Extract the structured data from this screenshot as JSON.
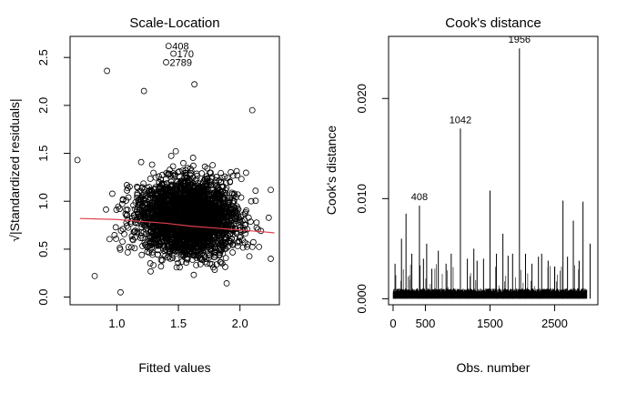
{
  "chart_data": [
    {
      "type": "scatter",
      "title": "Scale-Location",
      "xlabel": "Fitted values",
      "ylabel": "√|Standardized residuals|",
      "xlim": [
        0.62,
        2.32
      ],
      "ylim": [
        -0.08,
        2.72
      ],
      "xticks": [
        "1.0",
        "1.5",
        "2.0"
      ],
      "yticks": [
        "0.0",
        "0.5",
        "1.0",
        "1.5",
        "2.0",
        "2.5"
      ],
      "n_points": 3000,
      "marker": "open-circle",
      "smoother": {
        "color": "#e04050",
        "x": [
          0.7,
          1.0,
          1.2,
          1.4,
          1.6,
          1.8,
          2.0,
          2.2,
          2.28
        ],
        "y": [
          0.82,
          0.81,
          0.79,
          0.77,
          0.74,
          0.72,
          0.7,
          0.68,
          0.67
        ]
      },
      "outliers": [
        {
          "label": "408",
          "x": 1.42,
          "y": 2.62
        },
        {
          "label": "170",
          "x": 1.46,
          "y": 2.54
        },
        {
          "label": "2789",
          "x": 1.4,
          "y": 2.45
        }
      ],
      "notable_points": [
        {
          "x": 0.68,
          "y": 1.43
        },
        {
          "x": 0.92,
          "y": 2.36
        },
        {
          "x": 1.22,
          "y": 2.15
        },
        {
          "x": 1.63,
          "y": 2.22
        },
        {
          "x": 2.1,
          "y": 1.95
        },
        {
          "x": 0.82,
          "y": 0.22
        },
        {
          "x": 1.03,
          "y": 0.05
        },
        {
          "x": 2.25,
          "y": 0.4
        }
      ]
    },
    {
      "type": "bar",
      "title": "Cook's distance",
      "xlabel": "Obs. number",
      "ylabel": "Cook's distance",
      "xlim": [
        -70,
        3170
      ],
      "ylim": [
        -0.0006,
        0.0262
      ],
      "xticks": [
        "0",
        "500",
        "1500",
        "2500"
      ],
      "xtick_values": [
        0,
        500,
        1500,
        2500
      ],
      "yticks": [
        "0.000",
        "0.010",
        "0.020"
      ],
      "ytick_values": [
        0,
        0.01,
        0.02
      ],
      "n_obs": 3000,
      "spikes": [
        {
          "x": 30,
          "y": 0.0035
        },
        {
          "x": 130,
          "y": 0.006
        },
        {
          "x": 200,
          "y": 0.0085
        },
        {
          "x": 290,
          "y": 0.0045
        },
        {
          "x": 408,
          "y": 0.0093
        },
        {
          "x": 470,
          "y": 0.004
        },
        {
          "x": 520,
          "y": 0.0055
        },
        {
          "x": 600,
          "y": 0.003
        },
        {
          "x": 700,
          "y": 0.0048
        },
        {
          "x": 820,
          "y": 0.0035
        },
        {
          "x": 900,
          "y": 0.0045
        },
        {
          "x": 1042,
          "y": 0.017
        },
        {
          "x": 1150,
          "y": 0.004
        },
        {
          "x": 1250,
          "y": 0.005
        },
        {
          "x": 1300,
          "y": 0.0038
        },
        {
          "x": 1400,
          "y": 0.004
        },
        {
          "x": 1500,
          "y": 0.0108
        },
        {
          "x": 1600,
          "y": 0.0045
        },
        {
          "x": 1700,
          "y": 0.0065
        },
        {
          "x": 1780,
          "y": 0.0043
        },
        {
          "x": 1850,
          "y": 0.0045
        },
        {
          "x": 1956,
          "y": 0.025
        },
        {
          "x": 2050,
          "y": 0.0045
        },
        {
          "x": 2150,
          "y": 0.0035
        },
        {
          "x": 2250,
          "y": 0.0042
        },
        {
          "x": 2300,
          "y": 0.0045
        },
        {
          "x": 2400,
          "y": 0.0038
        },
        {
          "x": 2500,
          "y": 0.0032
        },
        {
          "x": 2630,
          "y": 0.0098
        },
        {
          "x": 2700,
          "y": 0.0042
        },
        {
          "x": 2790,
          "y": 0.0078
        },
        {
          "x": 2880,
          "y": 0.0038
        },
        {
          "x": 2940,
          "y": 0.0097
        },
        {
          "x": 3050,
          "y": 0.0055
        }
      ],
      "annotations": [
        {
          "label": "408",
          "x": 408,
          "y": 0.0093
        },
        {
          "label": "1042",
          "x": 1042,
          "y": 0.017
        },
        {
          "label": "1956",
          "x": 1956,
          "y": 0.025
        }
      ]
    }
  ]
}
